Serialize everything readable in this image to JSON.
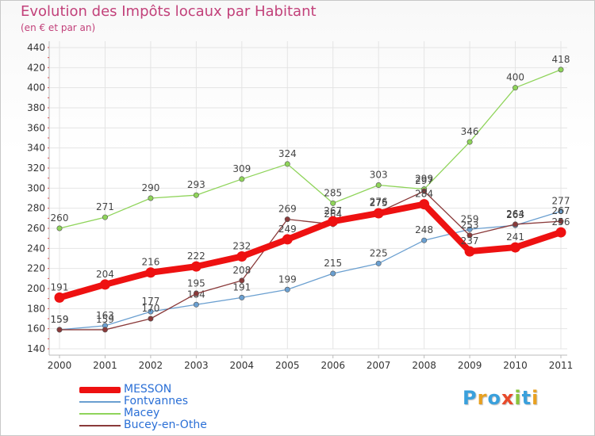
{
  "header": {
    "title": "Evolution des Impôts locaux par Habitant",
    "subtitle": "(en € et par an)"
  },
  "logo": {
    "text": "Proxiti",
    "colors": [
      "#3aa0dc",
      "#e8a020",
      "#3aa0dc",
      "#e84a2a",
      "#8ac43c",
      "#3aa0dc",
      "#e8a020"
    ]
  },
  "chart_data": {
    "type": "line",
    "title": "Evolution des Impôts locaux par Habitant",
    "subtitle": "(en € et par an)",
    "xlabel": "",
    "ylabel": "",
    "x": [
      "2000",
      "2001",
      "2002",
      "2003",
      "2004",
      "2005",
      "2006",
      "2007",
      "2008",
      "2009",
      "2010",
      "2011"
    ],
    "ylim": [
      140,
      440
    ],
    "yticks": [
      140,
      160,
      180,
      200,
      220,
      240,
      260,
      280,
      300,
      320,
      340,
      360,
      380,
      400,
      420,
      440
    ],
    "grid": true,
    "legend": "bottom-left",
    "series": [
      {
        "name": "Macey",
        "color": "#8fd45a",
        "values": [
          260,
          271,
          290,
          293,
          309,
          324,
          285,
          303,
          299,
          346,
          400,
          418
        ]
      },
      {
        "name": "Fontvannes",
        "color": "#6a9fd0",
        "values": [
          159,
          163,
          177,
          184,
          191,
          199,
          215,
          225,
          248,
          259,
          263,
          277
        ]
      },
      {
        "name": "Bucey-en-Othe",
        "color": "#8a3a3a",
        "values": [
          159,
          159,
          170,
          195,
          208,
          269,
          264,
          276,
          297,
          253,
          264,
          267
        ]
      },
      {
        "name": "MESSON",
        "color": "#ee1111",
        "values": [
          191,
          204,
          216,
          222,
          232,
          249,
          267,
          275,
          284,
          237,
          241,
          256
        ]
      }
    ]
  },
  "legend_items": [
    {
      "name": "MESSON",
      "color": "#ee1111"
    },
    {
      "name": "Fontvannes",
      "color": "#6a9fd0"
    },
    {
      "name": "Macey",
      "color": "#8fd45a"
    },
    {
      "name": "Bucey-en-Othe",
      "color": "#8a3a3a"
    }
  ]
}
